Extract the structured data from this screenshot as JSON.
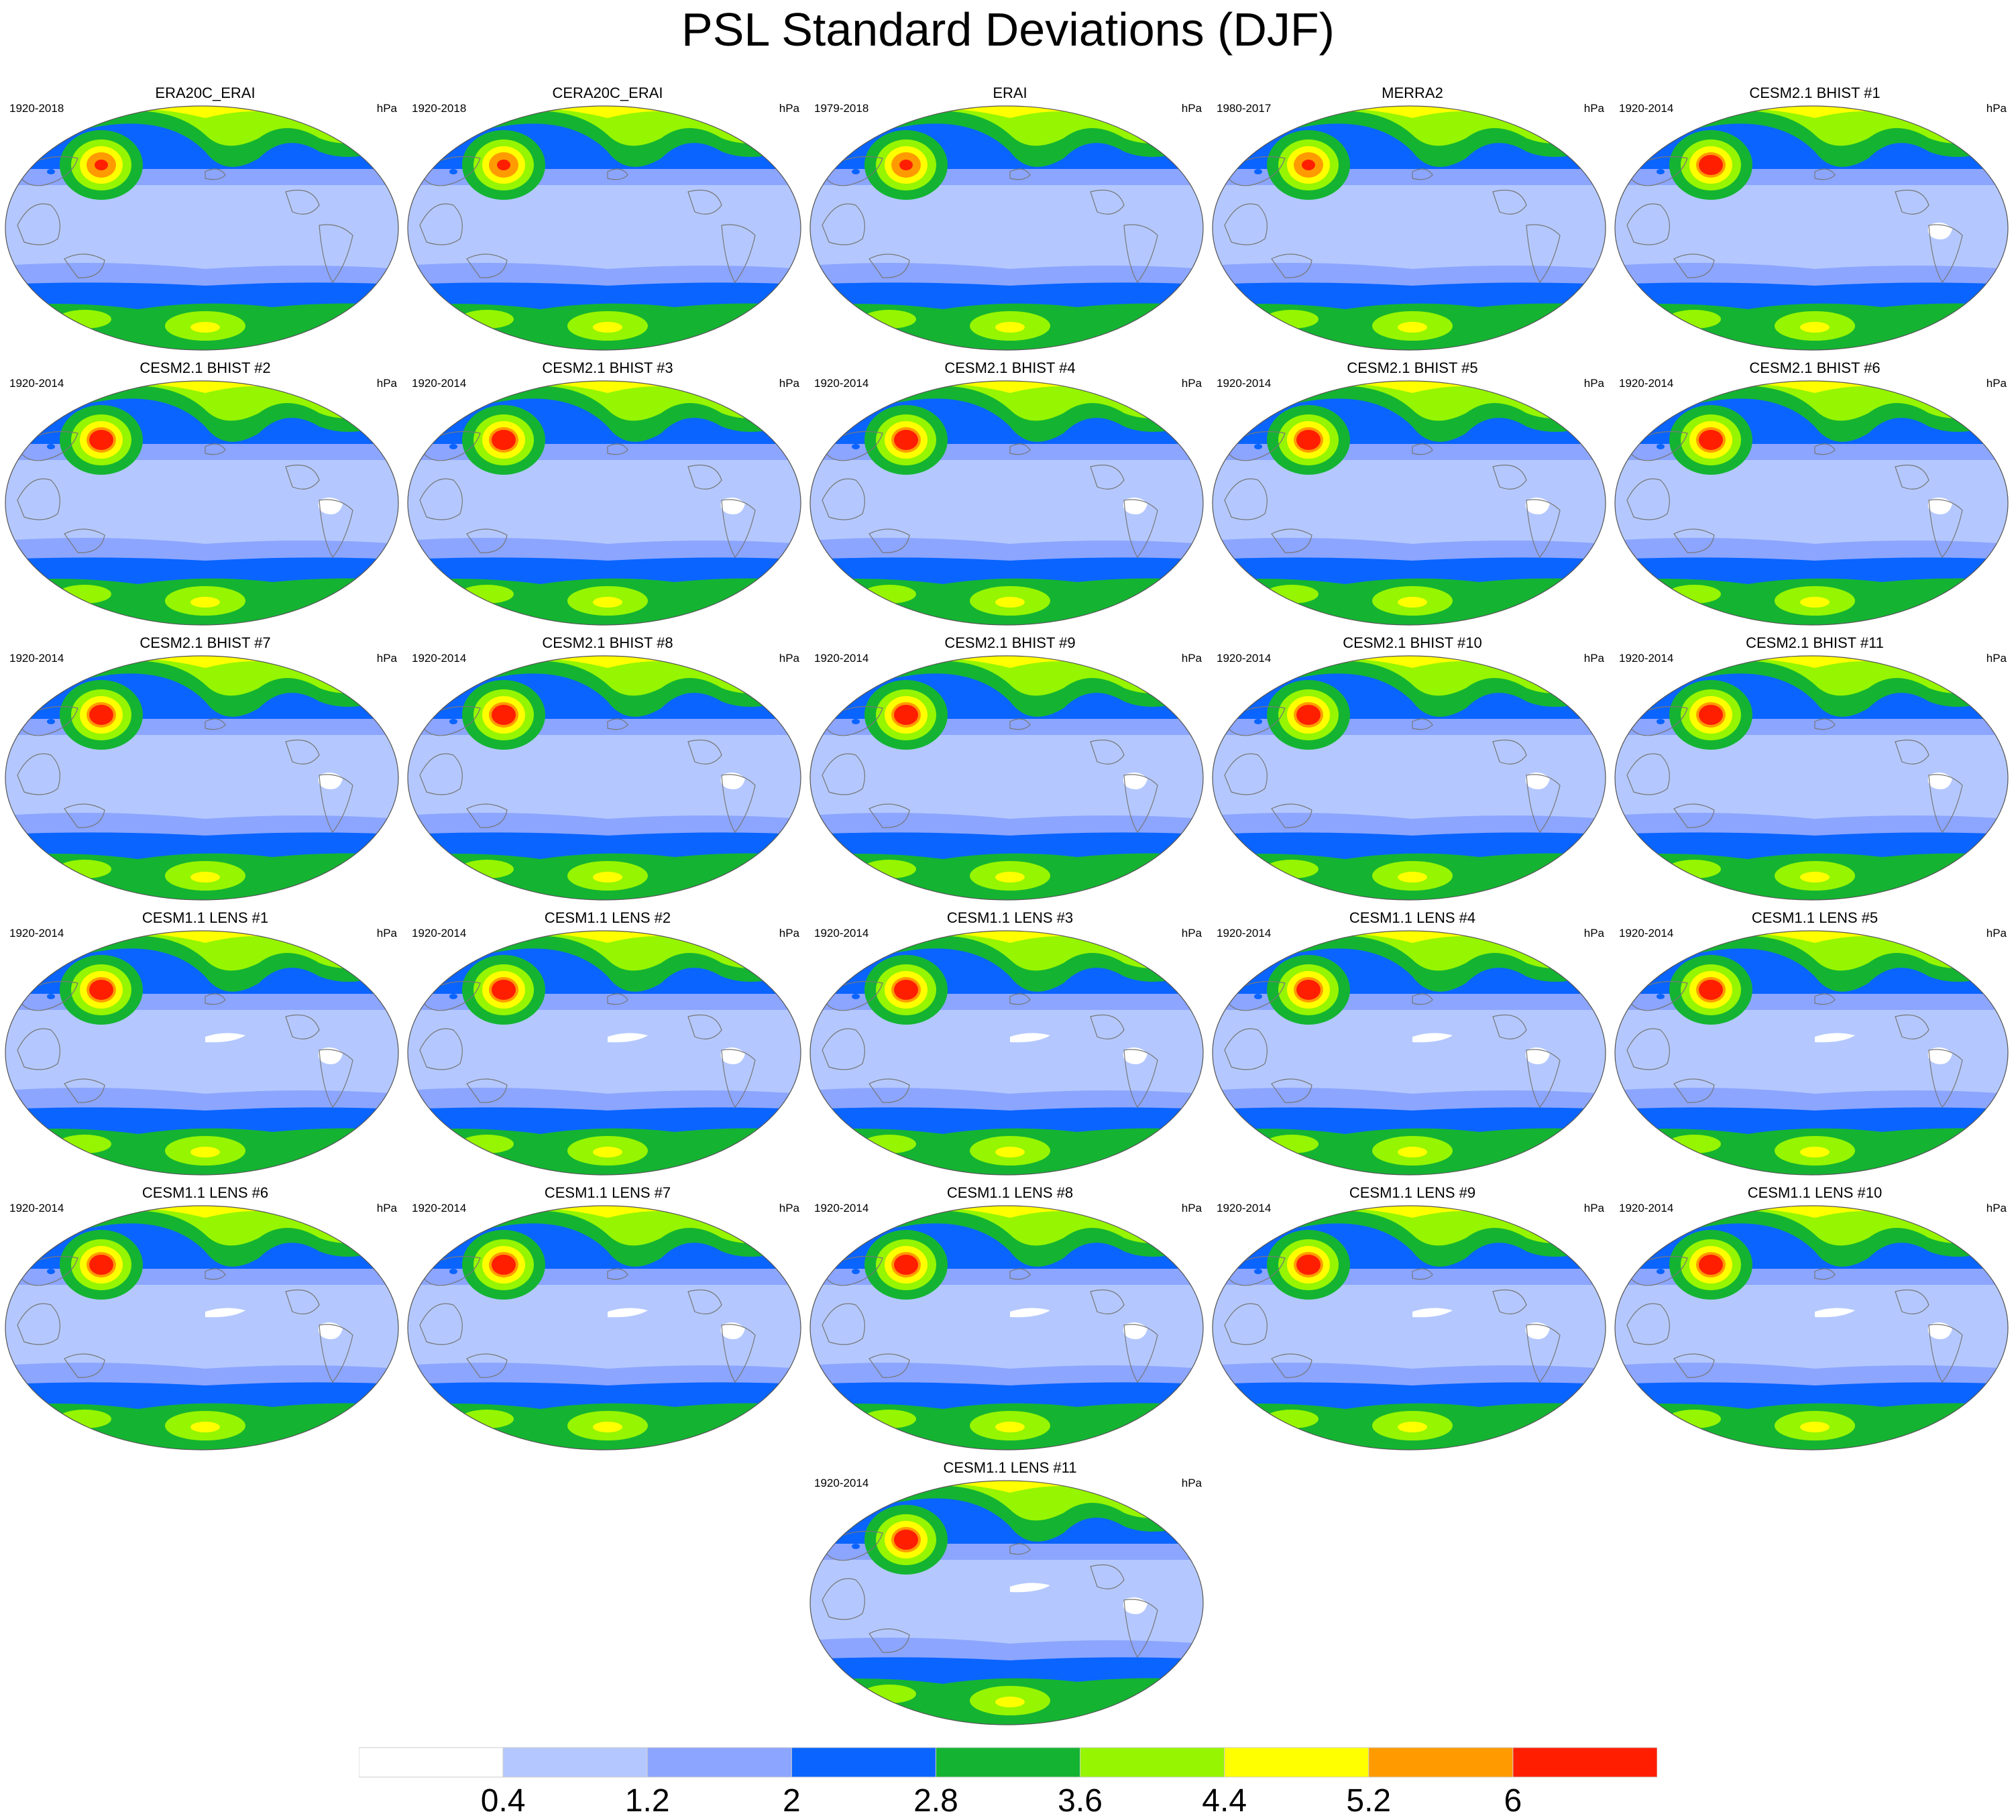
{
  "title": "PSL Standard Deviations (DJF)",
  "panels": [
    {
      "title": "ERA20C_ERAI",
      "period": "1920-2018",
      "units": "hPa"
    },
    {
      "title": "CERA20C_ERAI",
      "period": "1920-2018",
      "units": "hPa"
    },
    {
      "title": "ERAI",
      "period": "1979-2018",
      "units": "hPa"
    },
    {
      "title": "MERRA2",
      "period": "1980-2017",
      "units": "hPa"
    },
    {
      "title": "CESM2.1 BHIST #1",
      "period": "1920-2014",
      "units": "hPa"
    },
    {
      "title": "CESM2.1 BHIST #2",
      "period": "1920-2014",
      "units": "hPa"
    },
    {
      "title": "CESM2.1 BHIST #3",
      "period": "1920-2014",
      "units": "hPa"
    },
    {
      "title": "CESM2.1 BHIST #4",
      "period": "1920-2014",
      "units": "hPa"
    },
    {
      "title": "CESM2.1 BHIST #5",
      "period": "1920-2014",
      "units": "hPa"
    },
    {
      "title": "CESM2.1 BHIST #6",
      "period": "1920-2014",
      "units": "hPa"
    },
    {
      "title": "CESM2.1 BHIST #7",
      "period": "1920-2014",
      "units": "hPa"
    },
    {
      "title": "CESM2.1 BHIST #8",
      "period": "1920-2014",
      "units": "hPa"
    },
    {
      "title": "CESM2.1 BHIST #9",
      "period": "1920-2014",
      "units": "hPa"
    },
    {
      "title": "CESM2.1 BHIST #10",
      "period": "1920-2014",
      "units": "hPa"
    },
    {
      "title": "CESM2.1 BHIST #11",
      "period": "1920-2014",
      "units": "hPa"
    },
    {
      "title": "CESM1.1 LENS #1",
      "period": "1920-2014",
      "units": "hPa"
    },
    {
      "title": "CESM1.1 LENS #2",
      "period": "1920-2014",
      "units": "hPa"
    },
    {
      "title": "CESM1.1 LENS #3",
      "period": "1920-2014",
      "units": "hPa"
    },
    {
      "title": "CESM1.1 LENS #4",
      "period": "1920-2014",
      "units": "hPa"
    },
    {
      "title": "CESM1.1 LENS #5",
      "period": "1920-2014",
      "units": "hPa"
    },
    {
      "title": "CESM1.1 LENS #6",
      "period": "1920-2014",
      "units": "hPa"
    },
    {
      "title": "CESM1.1 LENS #7",
      "period": "1920-2014",
      "units": "hPa"
    },
    {
      "title": "CESM1.1 LENS #8",
      "period": "1920-2014",
      "units": "hPa"
    },
    {
      "title": "CESM1.1 LENS #9",
      "period": "1920-2014",
      "units": "hPa"
    },
    {
      "title": "CESM1.1 LENS #10",
      "period": "1920-2014",
      "units": "hPa"
    },
    {
      "title": "CESM1.1 LENS #11",
      "period": "1920-2014",
      "units": "hPa"
    }
  ],
  "colorbar": {
    "labels": [
      "0.4",
      "1.2",
      "2",
      "2.8",
      "3.6",
      "4.4",
      "5.2",
      "6"
    ],
    "colors": [
      "#ffffff",
      "#b4c8ff",
      "#8ca5ff",
      "#0a64ff",
      "#14b432",
      "#96f500",
      "#ffff00",
      "#ff9b00",
      "#ff1e00"
    ]
  }
}
